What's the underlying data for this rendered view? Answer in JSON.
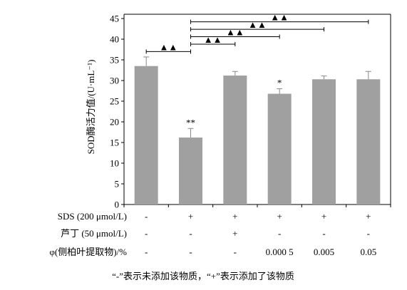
{
  "chart_data": {
    "type": "bar",
    "ylabel": "SOD酶活力值/(U·mL⁻¹)",
    "ylim": [
      0,
      45
    ],
    "yticks": [
      0,
      5,
      10,
      15,
      20,
      25,
      30,
      35,
      40,
      45
    ],
    "bar_color": "#a0a0a0",
    "values": [
      33.5,
      16.2,
      31.2,
      26.8,
      30.3,
      30.3
    ],
    "errors": [
      2.2,
      2.2,
      1.0,
      1.2,
      0.8,
      1.9
    ],
    "sig_labels": [
      "",
      "**",
      "",
      "*",
      "",
      ""
    ],
    "comparison_marker": "▲▲",
    "comparisons": [
      {
        "from": 0,
        "to": 1,
        "level": 37.0
      },
      {
        "from": 1,
        "to": 2,
        "level": 38.8
      },
      {
        "from": 1,
        "to": 3,
        "level": 40.6
      },
      {
        "from": 1,
        "to": 4,
        "level": 42.4
      },
      {
        "from": 1,
        "to": 5,
        "level": 44.2
      }
    ],
    "table_rows": [
      {
        "label": "SDS (200 μmol/L)",
        "cells": [
          "-",
          "+",
          "+",
          "+",
          "+",
          "+"
        ]
      },
      {
        "label": "芦丁 (50 μmol/L)",
        "cells": [
          "-",
          "-",
          "+",
          "-",
          "-",
          "-"
        ]
      },
      {
        "label": "φ(侧柏叶提取物)/%",
        "cells": [
          "-",
          "-",
          "-",
          "0.000 5",
          "0.005",
          "0.05"
        ]
      }
    ],
    "footnote": "“-”表示未添加该物质，“+”表示添加了该物质"
  }
}
